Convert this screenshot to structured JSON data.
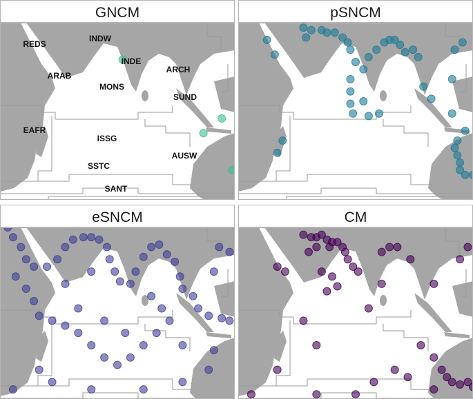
{
  "map": {
    "xlim": [
      30,
      120
    ],
    "ylim": [
      -45,
      28
    ]
  },
  "panels": [
    {
      "title": "GNCM",
      "color": "#3dbf92",
      "points": [
        [
          77,
          13
        ],
        [
          108,
          -17
        ],
        [
          115,
          -11
        ],
        [
          119,
          -32
        ]
      ]
    },
    {
      "title": "pSNCM",
      "color": "#1f7c96",
      "points": [
        [
          55,
          26
        ],
        [
          58,
          25
        ],
        [
          62,
          25
        ],
        [
          64,
          24
        ],
        [
          67,
          24
        ],
        [
          70,
          22
        ],
        [
          72,
          20
        ],
        [
          73,
          17
        ],
        [
          75,
          12
        ],
        [
          78,
          9
        ],
        [
          80,
          14
        ],
        [
          83,
          17
        ],
        [
          86,
          20
        ],
        [
          88,
          21
        ],
        [
          90,
          21
        ],
        [
          92,
          19
        ],
        [
          94,
          16
        ],
        [
          97,
          17
        ],
        [
          99,
          14
        ],
        [
          56,
          22
        ],
        [
          41,
          21
        ],
        [
          44,
          15
        ],
        [
          73,
          5
        ],
        [
          73,
          0
        ],
        [
          73,
          -5
        ],
        [
          74,
          -9
        ],
        [
          78,
          -4
        ],
        [
          80,
          -10
        ],
        [
          84,
          -9
        ],
        [
          101,
          2
        ],
        [
          104,
          -3
        ],
        [
          112,
          -9
        ],
        [
          114,
          -20
        ],
        [
          113,
          -23
        ],
        [
          114,
          -26
        ],
        [
          115,
          -29
        ],
        [
          115,
          -32
        ],
        [
          117,
          -34
        ],
        [
          120,
          -34
        ],
        [
          47,
          -20
        ],
        [
          45,
          -25
        ],
        [
          116,
          20
        ],
        [
          113,
          17
        ],
        [
          112,
          5
        ],
        [
          117,
          -16
        ]
      ]
    },
    {
      "title": "eSNCM",
      "color": "#3f3f96",
      "points": [
        [
          33,
          28
        ],
        [
          35,
          24
        ],
        [
          38,
          20
        ],
        [
          40,
          15
        ],
        [
          43,
          12
        ],
        [
          48,
          12
        ],
        [
          52,
          15
        ],
        [
          55,
          20
        ],
        [
          58,
          23
        ],
        [
          62,
          24
        ],
        [
          65,
          24
        ],
        [
          68,
          23
        ],
        [
          71,
          20
        ],
        [
          72,
          15
        ],
        [
          74,
          10
        ],
        [
          76,
          6
        ],
        [
          80,
          5
        ],
        [
          82,
          10
        ],
        [
          85,
          16
        ],
        [
          88,
          20
        ],
        [
          91,
          21
        ],
        [
          94,
          17
        ],
        [
          97,
          14
        ],
        [
          99,
          8
        ],
        [
          100,
          3
        ],
        [
          104,
          0
        ],
        [
          106,
          -5
        ],
        [
          110,
          -8
        ],
        [
          115,
          -9
        ],
        [
          118,
          -10
        ],
        [
          112,
          10
        ],
        [
          114,
          20
        ],
        [
          118,
          18
        ],
        [
          36,
          8
        ],
        [
          40,
          3
        ],
        [
          43,
          -2
        ],
        [
          45,
          -8
        ],
        [
          50,
          -10
        ],
        [
          55,
          -12
        ],
        [
          60,
          -15
        ],
        [
          65,
          -20
        ],
        [
          70,
          -25
        ],
        [
          75,
          -28
        ],
        [
          80,
          -25
        ],
        [
          85,
          -20
        ],
        [
          90,
          -15
        ],
        [
          95,
          -10
        ],
        [
          92,
          -5
        ],
        [
          88,
          0
        ],
        [
          70,
          -10
        ],
        [
          60,
          -5
        ],
        [
          55,
          5
        ],
        [
          65,
          10
        ],
        [
          45,
          -30
        ],
        [
          50,
          -35
        ],
        [
          65,
          -38
        ],
        [
          85,
          -38
        ],
        [
          100,
          -35
        ],
        [
          110,
          -30
        ],
        [
          112,
          -22
        ],
        [
          35,
          -38
        ],
        [
          100,
          -20
        ],
        [
          78,
          -15
        ]
      ]
    },
    {
      "title": "CM",
      "color": "#440154",
      "points": [
        [
          55,
          25
        ],
        [
          58,
          24
        ],
        [
          60,
          24
        ],
        [
          62,
          25
        ],
        [
          64,
          23
        ],
        [
          66,
          22
        ],
        [
          68,
          22
        ],
        [
          70,
          20
        ],
        [
          71,
          18
        ],
        [
          72,
          15
        ],
        [
          65,
          20
        ],
        [
          60,
          20
        ],
        [
          57,
          18
        ],
        [
          74,
          12
        ],
        [
          76,
          10
        ],
        [
          85,
          18
        ],
        [
          88,
          20
        ],
        [
          91,
          20
        ],
        [
          96,
          15
        ],
        [
          105,
          5
        ],
        [
          115,
          15
        ],
        [
          118,
          20
        ],
        [
          45,
          12
        ],
        [
          48,
          10
        ],
        [
          62,
          10
        ],
        [
          66,
          8
        ],
        [
          64,
          2
        ],
        [
          68,
          4
        ],
        [
          85,
          5
        ],
        [
          80,
          -5
        ],
        [
          55,
          -10
        ],
        [
          60,
          -20
        ],
        [
          45,
          -30
        ],
        [
          100,
          -20
        ],
        [
          105,
          -25
        ],
        [
          108,
          -30
        ],
        [
          110,
          -33
        ],
        [
          112,
          -35
        ],
        [
          115,
          -36
        ],
        [
          118,
          -35
        ],
        [
          120,
          -37
        ],
        [
          105,
          -38
        ],
        [
          95,
          -33
        ],
        [
          90,
          -30
        ],
        [
          82,
          -35
        ],
        [
          75,
          -40
        ],
        [
          60,
          -40
        ],
        [
          35,
          -40
        ]
      ]
    }
  ],
  "regions": [
    "REDS",
    "INDW",
    "INDE",
    "ARAB",
    "ARCH",
    "MONS",
    "SUND",
    "EAFR",
    "ISSG",
    "AUSW",
    "SSTC",
    "SANT"
  ]
}
